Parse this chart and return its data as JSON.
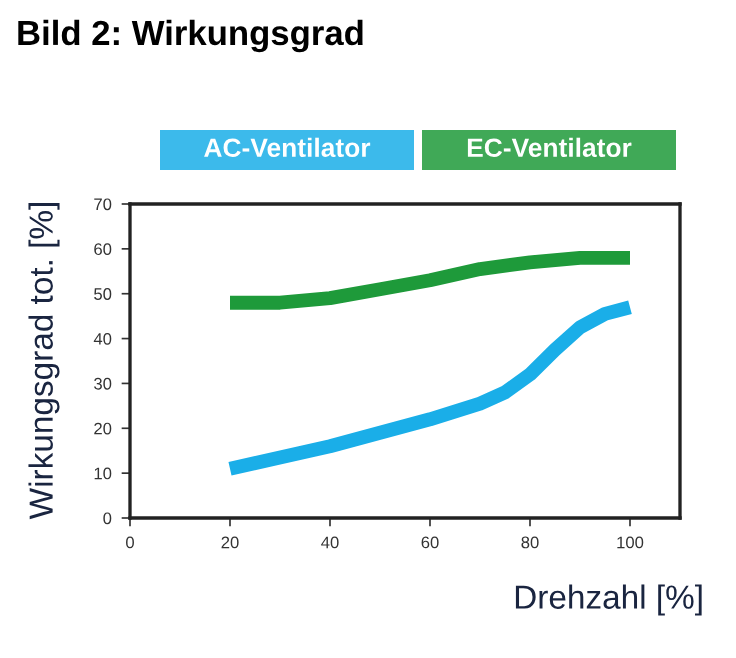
{
  "chart_data": {
    "type": "line",
    "title": "Bild 2: Wirkungsgrad",
    "xlabel": "Drehzahl [%]",
    "ylabel": "Wirkungsgrad tot. [%]",
    "series": [
      {
        "name": "AC-Ventilator",
        "color": "#1aaee8",
        "x": [
          20,
          30,
          40,
          50,
          60,
          70,
          75,
          80,
          85,
          90,
          95,
          100
        ],
        "values": [
          11,
          13.5,
          16,
          19,
          22,
          25.5,
          28,
          32,
          37.5,
          42.5,
          45.5,
          47
        ]
      },
      {
        "name": "EC-Ventilator",
        "color": "#1e9a3a",
        "x": [
          20,
          30,
          40,
          50,
          60,
          70,
          80,
          90,
          100
        ],
        "values": [
          48,
          48,
          49,
          51,
          53,
          55.5,
          57,
          58,
          58
        ]
      }
    ],
    "xlim": [
      0,
      110
    ],
    "xticks": [
      0,
      20,
      40,
      60,
      80,
      100
    ],
    "ylim": [
      0,
      70
    ],
    "yticks": [
      0,
      10,
      20,
      30,
      40,
      50,
      60,
      70
    ],
    "grid": false,
    "legend": "top",
    "marker": "none",
    "line_style": "solid"
  }
}
